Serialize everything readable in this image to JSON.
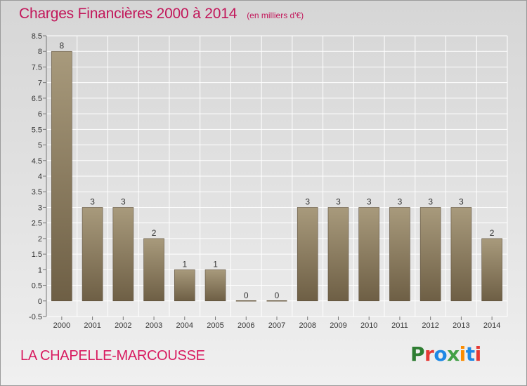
{
  "header": {
    "title": "Charges Financières 2000 à 2014",
    "unit": "(en milliers d'€)"
  },
  "footer": {
    "commune": "LA CHAPELLE-MARCOUSSE",
    "logo_text": "Proxiti",
    "logo_colors": [
      "#2e7d32",
      "#e53935",
      "#1e88e5",
      "#43a047",
      "#fb8c00",
      "#1e88e5",
      "#e53935"
    ]
  },
  "colors": {
    "title": "#c2185b",
    "bar_top": "#a89a7c",
    "bar_bottom": "#6e5f45",
    "grid": "#ffffff"
  },
  "chart_data": {
    "type": "bar",
    "categories": [
      "2000",
      "2001",
      "2002",
      "2003",
      "2004",
      "2005",
      "2006",
      "2007",
      "2008",
      "2009",
      "2010",
      "2011",
      "2012",
      "2013",
      "2014"
    ],
    "values": [
      8,
      3,
      3,
      2,
      1,
      1,
      0,
      0,
      3,
      3,
      3,
      3,
      3,
      3,
      2
    ],
    "data_labels": [
      "8",
      "3",
      "3",
      "2",
      "1",
      "1",
      "0",
      "0",
      "3",
      "3",
      "3",
      "3",
      "3",
      "3",
      "2"
    ],
    "y_ticks": [
      "8.5",
      "8",
      "7.5",
      "7",
      "6.5",
      "6",
      "5.5",
      "5",
      "4.5",
      "4",
      "3.5",
      "3",
      "2.5",
      "2",
      "1.5",
      "1",
      "0.5",
      "0",
      "-0.5"
    ],
    "ylim": [
      -0.5,
      8.5
    ],
    "grid": true,
    "title": "Charges Financières 2000 à 2014",
    "xlabel": "",
    "ylabel": ""
  }
}
